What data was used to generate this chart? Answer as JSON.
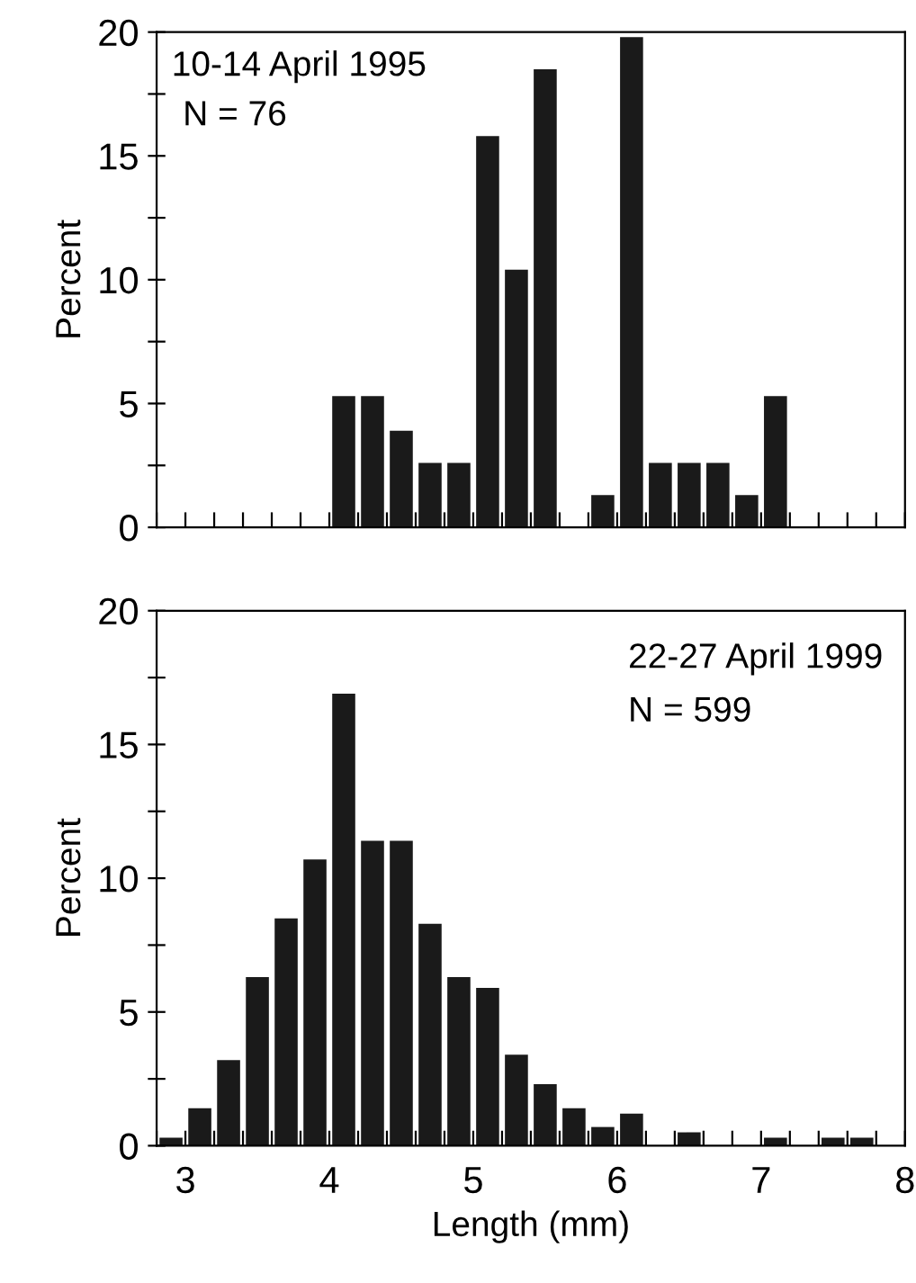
{
  "chart_data": [
    {
      "type": "histogram",
      "ylabel": "Percent",
      "annotations": [
        "10-14 April 1995",
        "N = 76"
      ],
      "color": "#1a1a1a",
      "bins": [
        2.8,
        3.0,
        3.2,
        3.4,
        3.6,
        3.8,
        4.0,
        4.2,
        4.4,
        4.6,
        4.8,
        5.0,
        5.2,
        5.4,
        5.6,
        5.8,
        6.0,
        6.2,
        6.4,
        6.6,
        6.8,
        7.0,
        7.2,
        7.4,
        7.6,
        7.8,
        8.0
      ],
      "values": [
        0,
        0,
        0,
        0,
        0,
        0,
        5.3,
        5.3,
        3.9,
        2.6,
        2.6,
        15.8,
        10.4,
        18.5,
        0,
        1.3,
        19.8,
        2.6,
        2.6,
        2.6,
        1.3,
        5.3,
        0,
        0,
        0,
        0
      ],
      "xlim": [
        2.8,
        8.0
      ],
      "xticks": [
        {
          "value": 2.8,
          "label": null
        },
        {
          "value": 3.0,
          "label": null
        },
        {
          "value": 3.2,
          "label": null
        },
        {
          "value": 3.4,
          "label": null
        },
        {
          "value": 3.6,
          "label": null
        },
        {
          "value": 3.8,
          "label": null
        },
        {
          "value": 4.0,
          "label": null
        },
        {
          "value": 4.2,
          "label": null
        },
        {
          "value": 4.4,
          "label": null
        },
        {
          "value": 4.6,
          "label": null
        },
        {
          "value": 4.8,
          "label": null
        },
        {
          "value": 5.0,
          "label": null
        },
        {
          "value": 5.2,
          "label": null
        },
        {
          "value": 5.4,
          "label": null
        },
        {
          "value": 5.6,
          "label": null
        },
        {
          "value": 5.8,
          "label": null
        },
        {
          "value": 6.0,
          "label": null
        },
        {
          "value": 6.2,
          "label": null
        },
        {
          "value": 6.4,
          "label": null
        },
        {
          "value": 6.6,
          "label": null
        },
        {
          "value": 6.8,
          "label": null
        },
        {
          "value": 7.0,
          "label": null
        },
        {
          "value": 7.2,
          "label": null
        },
        {
          "value": 7.4,
          "label": null
        },
        {
          "value": 7.6,
          "label": null
        },
        {
          "value": 7.8,
          "label": null
        },
        {
          "value": 8.0,
          "label": null
        }
      ],
      "ylim": [
        0,
        20
      ],
      "yticks": [
        0,
        {
          "value": 2.5,
          "label": null
        },
        5,
        {
          "value": 7.5,
          "label": null
        },
        10,
        {
          "value": 12.5,
          "label": null
        },
        15,
        {
          "value": 17.5,
          "label": null
        },
        20
      ],
      "tick_labels": "y",
      "grid": false
    },
    {
      "type": "histogram",
      "ylabel": "Percent",
      "xlabel": "Length (mm)",
      "annotations": [
        "22-27 April 1999",
        "N = 599"
      ],
      "color": "#1a1a1a",
      "bins": [
        2.8,
        3.0,
        3.2,
        3.4,
        3.6,
        3.8,
        4.0,
        4.2,
        4.4,
        4.6,
        4.8,
        5.0,
        5.2,
        5.4,
        5.6,
        5.8,
        6.0,
        6.2,
        6.4,
        6.6,
        6.8,
        7.0,
        7.2,
        7.4,
        7.6,
        7.8,
        8.0
      ],
      "values": [
        0.3,
        1.4,
        3.2,
        6.3,
        8.5,
        10.7,
        16.9,
        11.4,
        11.4,
        8.3,
        6.3,
        5.9,
        3.4,
        2.3,
        1.4,
        0.7,
        1.2,
        0,
        0.5,
        0,
        0,
        0.3,
        0,
        0.3,
        0.3,
        0
      ],
      "xlim": [
        2.8,
        8.0
      ],
      "xticks": [
        {
          "value": 2.8,
          "label": null
        },
        3,
        {
          "value": 3.2,
          "label": null
        },
        {
          "value": 3.4,
          "label": null
        },
        {
          "value": 3.6,
          "label": null
        },
        {
          "value": 3.8,
          "label": null
        },
        4,
        {
          "value": 4.2,
          "label": null
        },
        {
          "value": 4.4,
          "label": null
        },
        {
          "value": 4.6,
          "label": null
        },
        {
          "value": 4.8,
          "label": null
        },
        5,
        {
          "value": 5.2,
          "label": null
        },
        {
          "value": 5.4,
          "label": null
        },
        {
          "value": 5.6,
          "label": null
        },
        {
          "value": 5.8,
          "label": null
        },
        6,
        {
          "value": 6.2,
          "label": null
        },
        {
          "value": 6.4,
          "label": null
        },
        {
          "value": 6.6,
          "label": null
        },
        {
          "value": 6.8,
          "label": null
        },
        7,
        {
          "value": 7.2,
          "label": null
        },
        {
          "value": 7.4,
          "label": null
        },
        {
          "value": 7.6,
          "label": null
        },
        {
          "value": 7.8,
          "label": null
        },
        8
      ],
      "ylim": [
        0,
        20
      ],
      "yticks": [
        0,
        {
          "value": 2.5,
          "label": null
        },
        5,
        {
          "value": 7.5,
          "label": null
        },
        10,
        {
          "value": 12.5,
          "label": null
        },
        15,
        {
          "value": 17.5,
          "label": null
        },
        20
      ],
      "grid": false
    }
  ]
}
